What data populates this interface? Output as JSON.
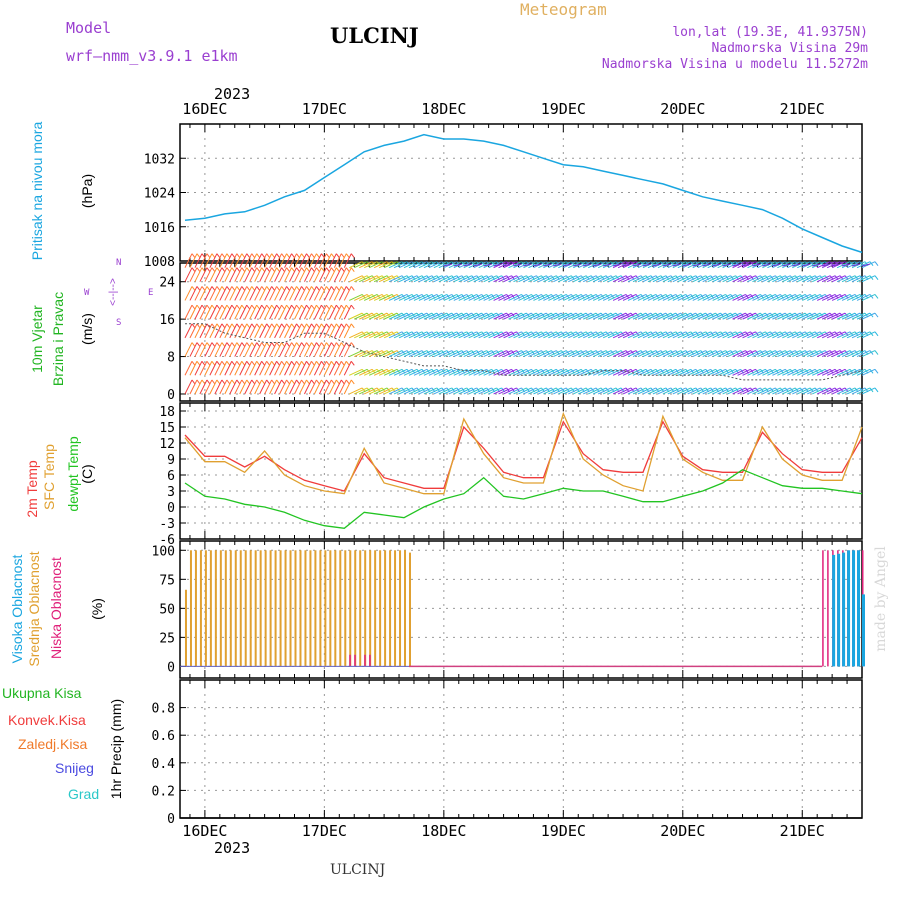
{
  "header": {
    "model_label": "Model",
    "model_name": "wrf–nmm_v3.9.1  e1km",
    "station": "ULCINJ",
    "title": "Meteogram",
    "coords": "lon,lat (19.3E, 41.9375N)",
    "elevation": "Nadmorska Visina 29m",
    "model_elevation": "Nadmorska Visina u modelu 11.5272m"
  },
  "footer": {
    "station": "ULCINJ",
    "credit": "made by Angel"
  },
  "time_axis": {
    "year_top": "2023",
    "year_bottom": "2023",
    "day_labels": [
      "16DEC",
      "17DEC",
      "18DEC",
      "19DEC",
      "20DEC",
      "21DEC"
    ],
    "start_hour_offset": -5,
    "end_hour_offset": 132
  },
  "panels": {
    "pressure": {
      "side_label": "Pritisak na nivou mora",
      "unit": "(hPa)",
      "color": "#1aa6e0"
    },
    "wind": {
      "side_label_1": "10m Vjetar",
      "side_label_2": "Brzina i Pravac",
      "unit": "(m/s)",
      "compass_n": "N",
      "compass_s": "S",
      "compass_w": "W",
      "compass_e": "E",
      "compass_symbols": "<--|-->",
      "color_label": "#9a3fd0",
      "color_text": "#22b522"
    },
    "temp": {
      "label_2m": "2m Temp",
      "label_sfc": "SFC Temp",
      "label_dew": "dewpt Temp",
      "unit": "(C)",
      "color_2m": "#f03c3c",
      "color_sfc": "#e0a030",
      "color_dew": "#22c422"
    },
    "cloud": {
      "label_high": "Visoka Oblacnost",
      "label_mid": "Srednja Oblacnost",
      "label_low": "Niska Oblacnost",
      "unit": "(%)",
      "color_high": "#1aa6e0",
      "color_mid": "#e0a030",
      "color_low": "#e0207a"
    },
    "precip": {
      "legend_total": "Ukupna Kisa",
      "legend_conv": "Konvek.Kisa",
      "legend_frz": "Zaledj.Kisa",
      "legend_snow": "Snijeg",
      "legend_hail": "Grad",
      "unit": "1hr Precip (mm)",
      "color_total": "#22b522",
      "color_conv": "#f03c3c",
      "color_frz": "#f07a2a",
      "color_snow": "#4a4ae0",
      "color_hail": "#2ac8c8"
    }
  },
  "chart_data": [
    {
      "type": "line",
      "name": "pressure",
      "ylabel": "(hPa)",
      "ylim": [
        1008,
        1040
      ],
      "yticks": [
        1008,
        1016,
        1024,
        1032
      ],
      "grid": true,
      "x_hours": [
        -4,
        0,
        4,
        8,
        12,
        16,
        20,
        24,
        28,
        32,
        36,
        40,
        44,
        48,
        52,
        56,
        60,
        64,
        68,
        72,
        76,
        80,
        84,
        88,
        92,
        96,
        100,
        104,
        108,
        112,
        116,
        120,
        124,
        128,
        132
      ],
      "series": [
        {
          "values": [
            1017.5,
            1018,
            1019,
            1019.5,
            1021,
            1023,
            1024.5,
            1027.5,
            1030.5,
            1033.5,
            1035,
            1036,
            1037.5,
            1036.5,
            1036.5,
            1036,
            1035,
            1033.5,
            1032,
            1030.5,
            1030,
            1029,
            1028,
            1027,
            1026,
            1024.5,
            1023,
            1022,
            1021,
            1020,
            1018,
            1015.5,
            1013.5,
            1011.5,
            1010
          ]
        }
      ]
    },
    {
      "type": "line",
      "name": "wind",
      "ylabel": "(m/s)",
      "ylim": [
        -1,
        28
      ],
      "yticks": [
        0,
        8,
        16,
        24
      ],
      "grid": true,
      "x_hours": [
        -4,
        0,
        4,
        8,
        12,
        16,
        20,
        24,
        28,
        32,
        36,
        40,
        44,
        48,
        52,
        56,
        60,
        64,
        68,
        72,
        76,
        80,
        84,
        88,
        92,
        96,
        100,
        104,
        108,
        112,
        116,
        120,
        124,
        128,
        132
      ],
      "series": [
        {
          "values": [
            15,
            15,
            13,
            12,
            11,
            11,
            13,
            13,
            11,
            9,
            8,
            7,
            6,
            6,
            5,
            5,
            4,
            4,
            4,
            4,
            4,
            5,
            5,
            4,
            4,
            4,
            4,
            4,
            3,
            3,
            3,
            3,
            3,
            4,
            5
          ]
        }
      ]
    },
    {
      "type": "line",
      "name": "temperature",
      "ylabel": "(C)",
      "ylim": [
        -6,
        19
      ],
      "yticks": [
        -6,
        -3,
        0,
        3,
        6,
        9,
        12,
        15,
        18
      ],
      "grid": true,
      "x_hours": [
        -4,
        0,
        4,
        8,
        12,
        16,
        20,
        24,
        28,
        32,
        36,
        40,
        44,
        48,
        52,
        56,
        60,
        64,
        68,
        72,
        76,
        80,
        84,
        88,
        92,
        96,
        100,
        104,
        108,
        112,
        116,
        120,
        124,
        128,
        132
      ],
      "series": [
        {
          "name": "2m Temp",
          "values": [
            13.5,
            9.5,
            9.5,
            7.5,
            9.5,
            7,
            5,
            4,
            3,
            10,
            5.5,
            4.5,
            3.5,
            3.5,
            15,
            11,
            6.5,
            5.5,
            5.5,
            16,
            10,
            7,
            6.5,
            6.5,
            16,
            9.5,
            7,
            6.5,
            6.5,
            14,
            10,
            7,
            6.5,
            6.5,
            13
          ]
        },
        {
          "name": "SFC Temp",
          "values": [
            13,
            8.5,
            8.5,
            6.5,
            10.5,
            6,
            4,
            3,
            2.5,
            11,
            4.5,
            3.5,
            2.5,
            2.5,
            16.5,
            10,
            5.5,
            4.5,
            4.5,
            17.5,
            9,
            6,
            4,
            3,
            17,
            9,
            6.5,
            5,
            5,
            15,
            9,
            6,
            5,
            5,
            15
          ]
        },
        {
          "name": "dewpt Temp",
          "values": [
            4.5,
            2,
            1.5,
            0.5,
            0,
            -1,
            -2.5,
            -3.5,
            -4,
            -1,
            -1.5,
            -2,
            0,
            1.5,
            2.5,
            5.5,
            2,
            1.5,
            2.5,
            3.5,
            3,
            3,
            2,
            1,
            1,
            2,
            3,
            4.5,
            7,
            5.5,
            4,
            3.5,
            3.5,
            3,
            2.5
          ]
        }
      ]
    },
    {
      "type": "bar",
      "name": "cloud",
      "ylabel": "(%)",
      "ylim": [
        0,
        100
      ],
      "yticks": [
        0,
        25,
        50,
        75,
        100
      ],
      "grid": true,
      "series": [
        {
          "name": "Srednja Oblacnost",
          "x_hours": [
            -4,
            -3,
            -2,
            -1,
            0,
            1,
            2,
            3,
            4,
            5,
            6,
            7,
            8,
            9,
            10,
            11,
            12,
            13,
            14,
            15,
            16,
            17,
            18,
            19,
            20,
            21,
            22,
            23,
            24,
            25,
            26,
            27,
            28,
            29,
            30,
            31,
            32,
            33,
            34,
            35,
            36,
            37,
            38,
            39,
            40,
            41
          ],
          "values": [
            66,
            100,
            100,
            100,
            100,
            100,
            100,
            100,
            100,
            100,
            100,
            100,
            100,
            100,
            100,
            100,
            100,
            100,
            100,
            100,
            100,
            100,
            100,
            100,
            100,
            100,
            100,
            100,
            100,
            100,
            100,
            100,
            100,
            100,
            100,
            100,
            100,
            100,
            100,
            100,
            100,
            100,
            100,
            100,
            100,
            98
          ]
        },
        {
          "name": "Niska Oblacnost",
          "x_hours": [
            29,
            30,
            32,
            33,
            124,
            125,
            126,
            127,
            128,
            129,
            130,
            131,
            132
          ],
          "values": [
            10,
            10,
            10,
            10,
            100,
            100,
            100,
            100,
            100,
            100,
            100,
            100,
            100
          ]
        },
        {
          "name": "Visoka Oblacnost",
          "x_hours": [
            126,
            127,
            128,
            129,
            130,
            131,
            132
          ],
          "values": [
            96,
            97,
            98,
            100,
            100,
            100,
            62
          ]
        }
      ]
    },
    {
      "type": "bar",
      "name": "precipitation",
      "ylabel": "1hr Precip (mm)",
      "ylim": [
        0,
        1.0
      ],
      "yticks": [
        0,
        0.2,
        0.4,
        0.6,
        0.8
      ],
      "grid": true,
      "series": []
    }
  ]
}
